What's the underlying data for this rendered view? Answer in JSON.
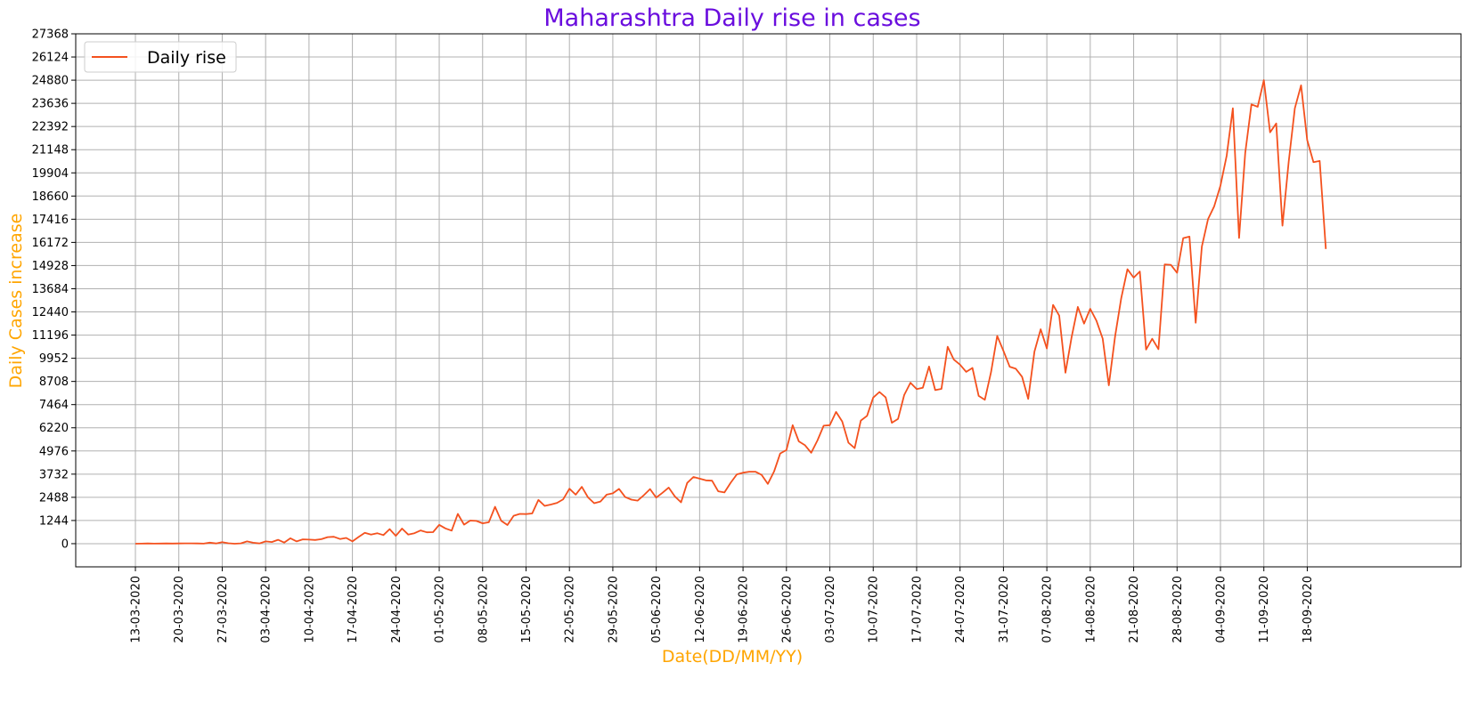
{
  "chart_data": {
    "type": "line",
    "title": "Maharashtra Daily rise in cases",
    "xlabel": "Date(DD/MM/YY)",
    "ylabel": "Daily Cases increase",
    "legend": {
      "position": "top-left",
      "entries": [
        "Daily rise"
      ]
    },
    "grid": true,
    "colors": {
      "line": "#f4511e",
      "title": "#6a0dde",
      "axis_label": "#ffa500",
      "grid": "#b0b0b0"
    },
    "ylim": [
      -1244,
      27368
    ],
    "y_ticks": [
      "0",
      "1244",
      "2488",
      "3732",
      "4976",
      "6220",
      "7464",
      "8708",
      "9952",
      "11196",
      "12440",
      "13684",
      "14928",
      "16172",
      "17416",
      "18660",
      "19904",
      "21148",
      "22392",
      "23636",
      "24880",
      "26124",
      "27368"
    ],
    "x_start_date": "13-03-2020",
    "x_ticks": [
      "13-03-2020",
      "20-03-2020",
      "27-03-2020",
      "03-04-2020",
      "10-04-2020",
      "17-04-2020",
      "24-04-2020",
      "01-05-2020",
      "08-05-2020",
      "15-05-2020",
      "22-05-2020",
      "29-05-2020",
      "05-06-2020",
      "12-06-2020",
      "19-06-2020",
      "26-06-2020",
      "03-07-2020",
      "10-07-2020",
      "17-07-2020",
      "24-07-2020",
      "31-07-2020",
      "07-08-2020",
      "14-08-2020",
      "21-08-2020",
      "28-08-2020",
      "04-09-2020",
      "11-09-2020",
      "18-09-2020"
    ],
    "series": [
      {
        "name": "Daily rise",
        "values": [
          0,
          5,
          14,
          4,
          7,
          13,
          9,
          11,
          18,
          16,
          11,
          5,
          55,
          10,
          80,
          20,
          0,
          15,
          120,
          50,
          10,
          120,
          90,
          210,
          60,
          290,
          120,
          230,
          220,
          200,
          240,
          350,
          370,
          250,
          310,
          120,
          360,
          580,
          490,
          560,
          460,
          780,
          420,
          810,
          490,
          560,
          710,
          610,
          620,
          1010,
          820,
          700,
          1600,
          1020,
          1240,
          1220,
          1090,
          1150,
          1980,
          1230,
          1000,
          1500,
          1600,
          1590,
          1620,
          2350,
          2030,
          2100,
          2190,
          2380,
          2950,
          2630,
          3050,
          2480,
          2170,
          2260,
          2630,
          2700,
          2940,
          2500,
          2360,
          2310,
          2600,
          2930,
          2470,
          2730,
          3010,
          2540,
          2220,
          3260,
          3580,
          3490,
          3400,
          3380,
          2810,
          2750,
          3270,
          3720,
          3810,
          3860,
          3860,
          3690,
          3210,
          3870,
          4840,
          5030,
          6360,
          5490,
          5280,
          4880,
          5540,
          6330,
          6360,
          7070,
          6560,
          5420,
          5130,
          6610,
          6860,
          7840,
          8140,
          7850,
          6490,
          6700,
          7980,
          8640,
          8300,
          8370,
          9510,
          8240,
          8310,
          10570,
          9880,
          9610,
          9220,
          9430,
          7930,
          7720,
          9210,
          11150,
          10350,
          9500,
          9390,
          8960,
          7770,
          10310,
          11510,
          10480,
          12820,
          12240,
          9180,
          11110,
          12710,
          11810,
          12610,
          11970,
          11010,
          8500,
          11120,
          13170,
          14730,
          14280,
          14610,
          10420,
          11000,
          10440,
          14990,
          14970,
          14540,
          16400,
          16480,
          11860,
          15940,
          17430,
          18110,
          19220,
          20830,
          23370,
          16410,
          20970,
          23580,
          23450,
          24880,
          22080,
          22560,
          17070,
          20500,
          23370,
          24600,
          21660,
          20480,
          20540,
          15820
        ]
      }
    ]
  }
}
